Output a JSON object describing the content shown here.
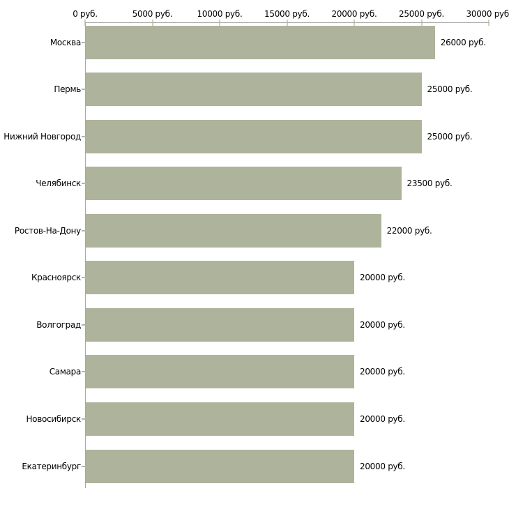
{
  "chart_data": {
    "type": "bar",
    "orientation": "horizontal",
    "title": "",
    "xlabel": "",
    "ylabel": "",
    "unit": "руб.",
    "categories": [
      "Москва",
      "Пермь",
      "Нижний Новгород",
      "Челябинск",
      "Ростов-На-Дону",
      "Красноярск",
      "Волгоград",
      "Самара",
      "Новосибирск",
      "Екатеринбург"
    ],
    "values": [
      26000,
      25000,
      25000,
      23500,
      22000,
      20000,
      20000,
      20000,
      20000,
      20000
    ],
    "value_labels": [
      "26000 руб.",
      "25000 руб.",
      "25000 руб.",
      "23500 руб.",
      "22000 руб.",
      "20000 руб.",
      "20000 руб.",
      "20000 руб.",
      "20000 руб.",
      "20000 руб."
    ],
    "x_ticks": [
      0,
      5000,
      10000,
      15000,
      20000,
      25000,
      30000
    ],
    "x_tick_labels": [
      "0 руб.",
      "5000 руб.",
      "10000 руб.",
      "15000 руб.",
      "20000 руб.",
      "25000 руб.",
      "30000 руб."
    ],
    "xlim": [
      0,
      30000
    ],
    "grid": false,
    "legend": "none",
    "axis_position": "top-left",
    "colors": {
      "bar": "#aeb39b",
      "axis_line": "#a8a8a8",
      "axis_tick": "#cdd2b4",
      "category_tick": "#b3b3b3",
      "text": "#000000",
      "background": "#ffffff"
    }
  }
}
